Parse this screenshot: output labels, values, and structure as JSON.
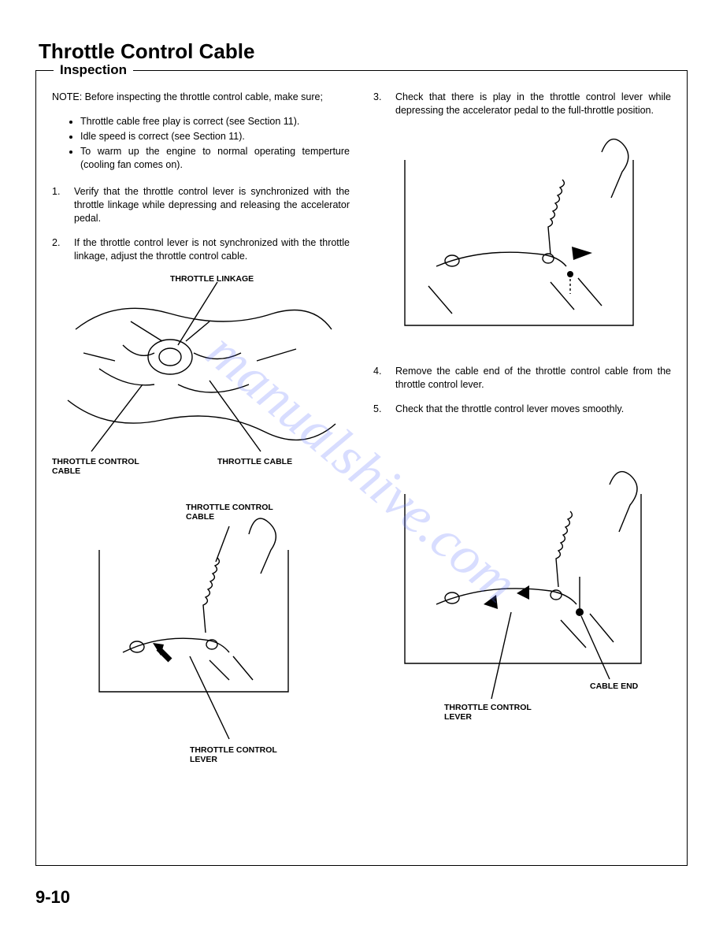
{
  "page_title": "Throttle Control Cable",
  "section_label": "Inspection",
  "note_text": "NOTE: Before inspecting the throttle control cable, make sure;",
  "bullets": [
    "Throttle cable free play is correct (see Section 11).",
    "Idle speed is correct (see Section 11).",
    "To warm up the engine to normal operating temperture (cooling fan comes on)."
  ],
  "steps_left": [
    {
      "num": "1.",
      "text": "Verify that the throttle control lever is synchronized with the throttle linkage while depressing and releasing the accelerator pedal."
    },
    {
      "num": "2.",
      "text": "If the throttle control lever is not synchronized with the throttle linkage, adjust the throttle control cable."
    }
  ],
  "steps_right": [
    {
      "num": "3.",
      "text": "Check that there is play in the throttle control lever while depressing the accelerator pedal to the full-throttle position."
    },
    {
      "num": "4.",
      "text": "Remove the cable end of the throttle control cable from the throttle control lever."
    },
    {
      "num": "5.",
      "text": "Check that the throttle control lever moves smoothly."
    }
  ],
  "diag1_labels": {
    "throttle_linkage": "THROTTLE LINKAGE",
    "throttle_control_cable": "THROTTLE CONTROL\nCABLE",
    "throttle_cable": "THROTTLE CABLE"
  },
  "diag2_labels": {
    "throttle_control_cable": "THROTTLE CONTROL\nCABLE",
    "throttle_control_lever": "THROTTLE CONTROL\nLEVER"
  },
  "diag4_labels": {
    "cable_end": "CABLE END",
    "throttle_control_lever": "THROTTLE CONTROL\nLEVER"
  },
  "page_number": "9-10",
  "watermark": "manualshive.com",
  "colors": {
    "text": "#000000",
    "background": "#ffffff",
    "border": "#000000",
    "watermark": "rgba(100,120,255,0.25)"
  }
}
